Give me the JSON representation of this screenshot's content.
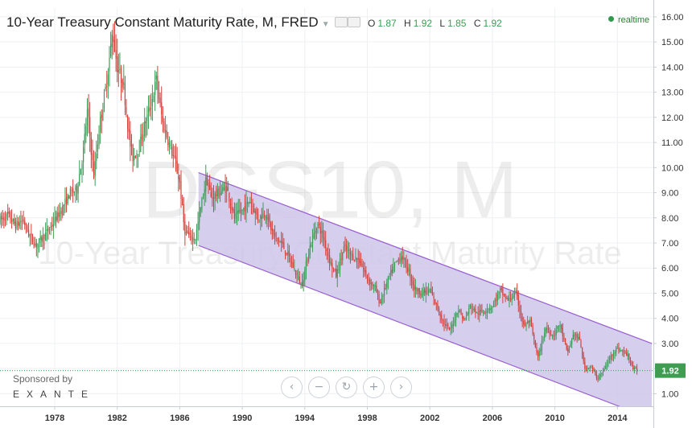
{
  "header": {
    "title": "10-Year Treasury Constant Maturity Rate, M, FRED",
    "ohlc": {
      "o_label": "O",
      "o": "1.87",
      "h_label": "H",
      "h": "1.92",
      "l_label": "L",
      "l": "1.85",
      "c_label": "C",
      "c": "1.92"
    },
    "realtime": "realtime",
    "sponsor": "Sponsored by",
    "brand": "EXANTE"
  },
  "colors": {
    "up": "#3a9d56",
    "down": "#d3413b",
    "channel_fill": "#cfc6ea",
    "channel_line": "#9a5fcf",
    "last_badge": "#3f9d52"
  },
  "controls": [
    {
      "name": "scroll-left-button",
      "icon": "chevron-left-icon",
      "glyph": "‹"
    },
    {
      "name": "zoom-out-button",
      "icon": "minus-icon",
      "glyph": "−"
    },
    {
      "name": "reset-button",
      "icon": "refresh-icon",
      "glyph": "↻"
    },
    {
      "name": "zoom-in-button",
      "icon": "plus-icon",
      "glyph": "+"
    },
    {
      "name": "scroll-right-button",
      "icon": "chevron-right-icon",
      "glyph": "›"
    }
  ],
  "chart_data": {
    "type": "candlestick",
    "title": "10-Year Treasury Constant Maturity Rate, M, FRED",
    "watermark": [
      "DGS10, M",
      "10-Year Treasury Constant Maturity Rate"
    ],
    "x_labels": [
      "1978",
      "1982",
      "1986",
      "1990",
      "1994",
      "1998",
      "2002",
      "2006",
      "2010",
      "2014"
    ],
    "x_label_years": [
      1978,
      1982,
      1986,
      1990,
      1994,
      1998,
      2002,
      2006,
      2010,
      2014
    ],
    "x_range": [
      1974.5,
      2016.3
    ],
    "y_labels": [
      "1.00",
      "2.00",
      "3.00",
      "4.00",
      "5.00",
      "6.00",
      "7.00",
      "8.00",
      "9.00",
      "10.00",
      "11.00",
      "12.00",
      "13.00",
      "14.00",
      "15.00",
      "16.00"
    ],
    "y_range": [
      0.5,
      16.35
    ],
    "last_value": "1.92",
    "last_value_num": 1.92,
    "series_path": [
      [
        1974.5,
        7.9
      ],
      [
        1975.0,
        8.1
      ],
      [
        1975.5,
        7.7
      ],
      [
        1976.0,
        7.9
      ],
      [
        1976.3,
        7.4
      ],
      [
        1976.8,
        6.9
      ],
      [
        1977.2,
        7.2
      ],
      [
        1977.6,
        7.5
      ],
      [
        1978.0,
        7.9
      ],
      [
        1978.5,
        8.4
      ],
      [
        1979.0,
        9.0
      ],
      [
        1979.4,
        9.1
      ],
      [
        1979.8,
        10.5
      ],
      [
        1980.1,
        12.3
      ],
      [
        1980.3,
        10.9
      ],
      [
        1980.5,
        9.7
      ],
      [
        1980.9,
        11.8
      ],
      [
        1981.3,
        13.3
      ],
      [
        1981.7,
        15.4
      ],
      [
        1982.0,
        14.0
      ],
      [
        1982.4,
        13.3
      ],
      [
        1982.8,
        11.0
      ],
      [
        1983.0,
        10.4
      ],
      [
        1983.4,
        10.8
      ],
      [
        1983.8,
        11.8
      ],
      [
        1984.2,
        12.6
      ],
      [
        1984.5,
        13.5
      ],
      [
        1984.9,
        11.8
      ],
      [
        1985.3,
        11.0
      ],
      [
        1985.7,
        10.2
      ],
      [
        1986.0,
        9.4
      ],
      [
        1986.3,
        7.5
      ],
      [
        1986.7,
        7.2
      ],
      [
        1987.0,
        7.2
      ],
      [
        1987.4,
        8.6
      ],
      [
        1987.7,
        9.6
      ],
      [
        1988.0,
        8.8
      ],
      [
        1988.5,
        9.0
      ],
      [
        1989.0,
        9.2
      ],
      [
        1989.5,
        8.0
      ],
      [
        1990.0,
        8.3
      ],
      [
        1990.5,
        8.7
      ],
      [
        1991.0,
        8.0
      ],
      [
        1991.5,
        8.2
      ],
      [
        1992.0,
        7.3
      ],
      [
        1992.5,
        7.0
      ],
      [
        1993.0,
        6.4
      ],
      [
        1993.5,
        5.7
      ],
      [
        1993.8,
        5.3
      ],
      [
        1994.3,
        6.8
      ],
      [
        1994.8,
        7.8
      ],
      [
        1995.2,
        7.2
      ],
      [
        1995.6,
        6.3
      ],
      [
        1996.0,
        5.7
      ],
      [
        1996.5,
        6.8
      ],
      [
        1997.0,
        6.5
      ],
      [
        1997.5,
        6.3
      ],
      [
        1998.0,
        5.6
      ],
      [
        1998.5,
        5.2
      ],
      [
        1998.8,
        4.6
      ],
      [
        1999.3,
        5.5
      ],
      [
        1999.8,
        6.2
      ],
      [
        2000.2,
        6.5
      ],
      [
        2000.7,
        5.8
      ],
      [
        2001.0,
        5.2
      ],
      [
        2001.5,
        5.0
      ],
      [
        2002.0,
        5.1
      ],
      [
        2002.5,
        4.4
      ],
      [
        2002.9,
        3.8
      ],
      [
        2003.3,
        3.5
      ],
      [
        2003.8,
        4.4
      ],
      [
        2004.2,
        3.9
      ],
      [
        2004.6,
        4.5
      ],
      [
        2005.0,
        4.2
      ],
      [
        2005.5,
        4.3
      ],
      [
        2006.0,
        4.5
      ],
      [
        2006.5,
        5.1
      ],
      [
        2007.0,
        4.7
      ],
      [
        2007.5,
        5.0
      ],
      [
        2008.0,
        3.7
      ],
      [
        2008.4,
        3.9
      ],
      [
        2008.9,
        2.4
      ],
      [
        2009.4,
        3.6
      ],
      [
        2009.9,
        3.3
      ],
      [
        2010.3,
        3.8
      ],
      [
        2010.8,
        2.6
      ],
      [
        2011.2,
        3.4
      ],
      [
        2011.6,
        3.1
      ],
      [
        2011.9,
        2.0
      ],
      [
        2012.3,
        2.1
      ],
      [
        2012.7,
        1.6
      ],
      [
        2013.1,
        1.9
      ],
      [
        2013.5,
        2.4
      ],
      [
        2013.9,
        2.8
      ],
      [
        2014.3,
        2.7
      ],
      [
        2014.7,
        2.5
      ],
      [
        2015.0,
        2.0
      ],
      [
        2015.3,
        1.9
      ]
    ],
    "channel": {
      "upper": [
        [
          1987.2,
          9.8
        ],
        [
          2016.2,
          3.0
        ]
      ],
      "lower": [
        [
          1987.2,
          6.9
        ],
        [
          2016.2,
          0.0
        ]
      ]
    }
  }
}
